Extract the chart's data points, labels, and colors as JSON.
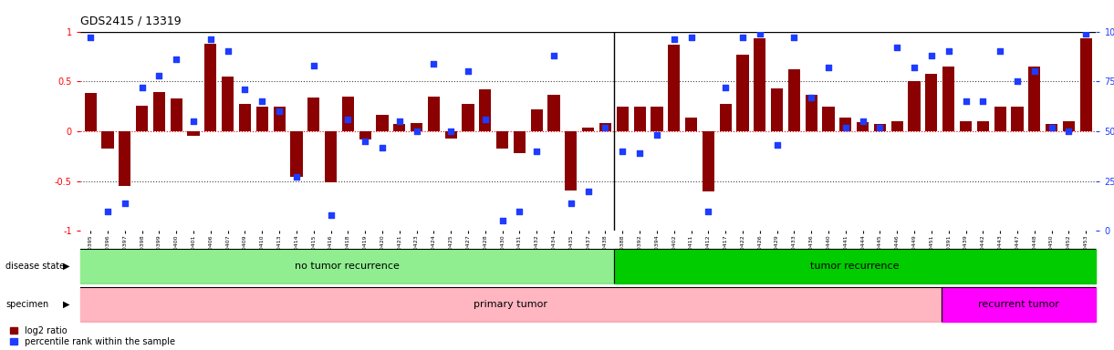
{
  "title": "GDS2415 / 13319",
  "samples": [
    "GSM110395",
    "GSM110396",
    "GSM110397",
    "GSM110398",
    "GSM110399",
    "GSM110400",
    "GSM110401",
    "GSM110406",
    "GSM110407",
    "GSM110409",
    "GSM110410",
    "GSM110413",
    "GSM110414",
    "GSM110415",
    "GSM110416",
    "GSM110418",
    "GSM110419",
    "GSM110420",
    "GSM110421",
    "GSM110423",
    "GSM110424",
    "GSM110425",
    "GSM110427",
    "GSM110428",
    "GSM110430",
    "GSM110431",
    "GSM110432",
    "GSM110434",
    "GSM110435",
    "GSM110437",
    "GSM110438",
    "GSM110388",
    "GSM110392",
    "GSM110394",
    "GSM110402",
    "GSM110411",
    "GSM110412",
    "GSM110417",
    "GSM110422",
    "GSM110426",
    "GSM110429",
    "GSM110433",
    "GSM110436",
    "GSM110440",
    "GSM110441",
    "GSM110444",
    "GSM110445",
    "GSM110446",
    "GSM110449",
    "GSM110451",
    "GSM110391",
    "GSM110439",
    "GSM110442",
    "GSM110443",
    "GSM110447",
    "GSM110448",
    "GSM110450",
    "GSM110452",
    "GSM110453"
  ],
  "log2_ratio": [
    0.38,
    -0.17,
    -0.55,
    0.26,
    0.39,
    0.33,
    -0.05,
    0.88,
    0.55,
    0.27,
    0.25,
    0.25,
    -0.46,
    0.34,
    -0.51,
    0.35,
    -0.08,
    0.16,
    0.07,
    0.08,
    0.35,
    -0.07,
    0.27,
    0.42,
    -0.17,
    -0.22,
    0.22,
    0.37,
    -0.59,
    0.04,
    0.08,
    0.25,
    0.25,
    0.25,
    0.87,
    0.14,
    -0.6,
    0.27,
    0.77,
    0.93,
    0.43,
    0.62,
    0.37,
    0.25,
    0.14,
    0.09,
    0.07,
    0.1,
    0.5,
    0.58,
    0.65,
    0.1,
    0.1,
    0.25,
    0.25,
    0.65,
    0.07,
    0.1,
    0.93
  ],
  "percentile_rank": [
    97,
    10,
    14,
    72,
    78,
    86,
    55,
    96,
    90,
    71,
    65,
    60,
    27,
    83,
    8,
    56,
    45,
    42,
    55,
    50,
    84,
    50,
    80,
    56,
    5,
    10,
    40,
    88,
    14,
    20,
    52,
    40,
    39,
    48,
    96,
    97,
    10,
    72,
    97,
    99,
    43,
    97,
    67,
    82,
    52,
    55,
    52,
    92,
    82,
    88,
    90,
    65,
    65,
    90,
    75,
    80,
    52,
    50,
    99
  ],
  "no_recurrence_count": 31,
  "primary_count": 50,
  "bar_color": "#8B0000",
  "dot_color": "#1E3CFF",
  "ylim": [
    -1,
    1
  ],
  "y2lim": [
    0,
    100
  ],
  "yticks_left": [
    -1,
    -0.5,
    0,
    0.5,
    1
  ],
  "yticks_right": [
    0,
    25,
    50,
    75,
    100
  ],
  "no_recurrence_label": "no tumor recurrence",
  "recurrence_label": "tumor recurrence",
  "primary_tumor_label": "primary tumor",
  "recurrent_tumor_label": "recurrent tumor",
  "disease_state_label": "disease state",
  "specimen_label": "specimen",
  "legend_bar_label": "log2 ratio",
  "legend_dot_label": "percentile rank within the sample",
  "no_recurrence_color": "#90EE90",
  "recurrence_color": "#00CC00",
  "primary_tumor_color": "#FFB6C1",
  "recurrent_tumor_color": "#FF00FF"
}
